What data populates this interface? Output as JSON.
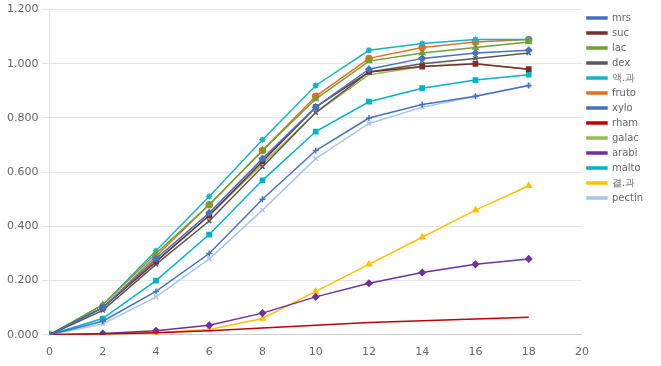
{
  "chart_data": {
    "type": "line",
    "x": [
      0,
      2,
      4,
      6,
      8,
      10,
      12,
      14,
      16,
      18
    ],
    "series": [
      {
        "name": "mrs",
        "color": "#4472C4",
        "marker": "diamond",
        "values": [
          0.0,
          0.1,
          0.28,
          0.45,
          0.65,
          0.84,
          0.98,
          1.02,
          1.04,
          1.05
        ]
      },
      {
        "name": "suc",
        "color": "#7B2C2C",
        "marker": "square",
        "values": [
          0.0,
          0.1,
          0.27,
          0.44,
          0.64,
          0.84,
          0.97,
          0.99,
          1.0,
          0.98
        ]
      },
      {
        "name": "lac",
        "color": "#70A030",
        "marker": "triangle",
        "values": [
          0.0,
          0.11,
          0.3,
          0.48,
          0.68,
          0.87,
          1.01,
          1.04,
          1.06,
          1.08
        ]
      },
      {
        "name": "dex",
        "color": "#595959",
        "marker": "x",
        "values": [
          0.0,
          0.09,
          0.26,
          0.42,
          0.62,
          0.82,
          0.97,
          1.0,
          1.02,
          1.04
        ]
      },
      {
        "name": "액.과",
        "color": "#17B3C3",
        "marker": "star",
        "values": [
          0.0,
          0.11,
          0.31,
          0.51,
          0.72,
          0.92,
          1.05,
          1.075,
          1.09,
          1.09
        ]
      },
      {
        "name": "fruto",
        "color": "#E07020",
        "marker": "circle",
        "values": [
          0.0,
          0.1,
          0.29,
          0.48,
          0.68,
          0.88,
          1.02,
          1.06,
          1.08,
          1.09
        ]
      },
      {
        "name": "xylo",
        "color": "#4472C4",
        "marker": "plus",
        "values": [
          0.0,
          0.05,
          0.16,
          0.3,
          0.5,
          0.68,
          0.8,
          0.85,
          0.88,
          0.92
        ]
      },
      {
        "name": "rham",
        "color": "#C00000",
        "marker": "none",
        "values": [
          0.0,
          0.003,
          0.008,
          0.015,
          0.025,
          0.035,
          0.045,
          0.052,
          0.058,
          0.065
        ]
      },
      {
        "name": "galac",
        "color": "#92C050",
        "marker": "none",
        "values": [
          0.0,
          0.1,
          0.27,
          0.44,
          0.63,
          0.82,
          0.96,
          0.99,
          1.0,
          0.98
        ]
      },
      {
        "name": "arabi",
        "color": "#7030A0",
        "marker": "diamond",
        "values": [
          0.0,
          0.005,
          0.015,
          0.035,
          0.08,
          0.14,
          0.19,
          0.23,
          0.26,
          0.28
        ]
      },
      {
        "name": "malto",
        "color": "#00B4C8",
        "marker": "square",
        "values": [
          0.0,
          0.06,
          0.2,
          0.37,
          0.57,
          0.75,
          0.86,
          0.91,
          0.94,
          0.96
        ]
      },
      {
        "name": "결.과",
        "color": "#FFC000",
        "marker": "triangle",
        "values": [
          0.0,
          0.002,
          0.008,
          0.02,
          0.06,
          0.16,
          0.26,
          0.36,
          0.46,
          0.55
        ]
      },
      {
        "name": "pectin",
        "color": "#A8C8E8",
        "marker": "x",
        "values": [
          0.0,
          0.04,
          0.14,
          0.28,
          0.46,
          0.65,
          0.78,
          0.84,
          0.88,
          0.92
        ]
      }
    ],
    "xlim": [
      0,
      20
    ],
    "xticks": [
      0,
      2,
      4,
      6,
      8,
      10,
      12,
      14,
      16,
      18,
      20
    ],
    "ylim": [
      0,
      1.2
    ],
    "yticks": [
      {
        "value": 0,
        "label": "0.000"
      },
      {
        "value": 0.2,
        "label": "0.200"
      },
      {
        "value": 0.4,
        "label": "0.400"
      },
      {
        "value": 0.6,
        "label": "0.600"
      },
      {
        "value": 0.8,
        "label": "0.800"
      },
      {
        "value": 1.0,
        "label": "1.000"
      },
      {
        "value": 1.2,
        "label": "1.200"
      }
    ],
    "grid": "y",
    "legend": "right"
  }
}
